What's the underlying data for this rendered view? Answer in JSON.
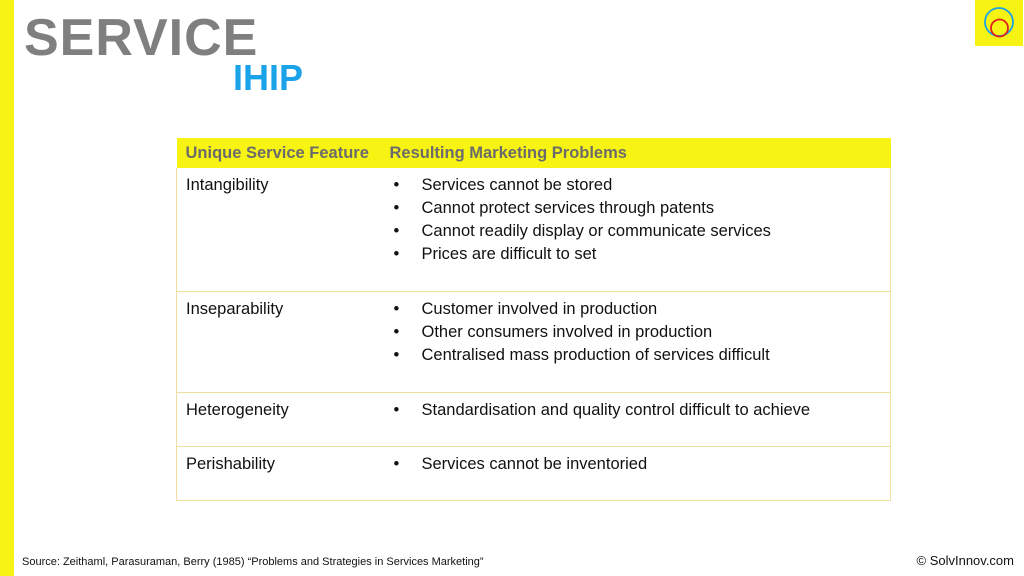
{
  "slide": {
    "title": "SERVICE",
    "subtitle": "IHIP"
  },
  "table": {
    "headers": [
      "Unique Service Feature",
      "Resulting Marketing Problems"
    ],
    "rows": [
      {
        "feature": "Intangibility",
        "problems": [
          "Services cannot be stored",
          "Cannot protect services through patents",
          "Cannot readily display or communicate services",
          "Prices are difficult to set"
        ]
      },
      {
        "feature": "Inseparability",
        "problems": [
          "Customer involved in production",
          "Other consumers involved in production",
          "Centralised mass production of services difficult"
        ]
      },
      {
        "feature": "Heterogeneity",
        "problems": [
          "Standardisation and quality control difficult to achieve"
        ]
      },
      {
        "feature": "Perishability",
        "problems": [
          "Services cannot be inventoried"
        ]
      }
    ],
    "bullet_symbol": "•"
  },
  "footer": {
    "source": "Source: Zeithaml, Parasuraman, Berry (1985) “Problems and Strategies in Services Marketing”",
    "copyright": "© SolvInnov.com"
  },
  "colors": {
    "accent_yellow": "#f7f414",
    "title_gray": "#7f7f7f",
    "subtitle_blue": "#1aa3e8"
  },
  "icons": {
    "logo": "overlapping-circles-logo-icon"
  }
}
